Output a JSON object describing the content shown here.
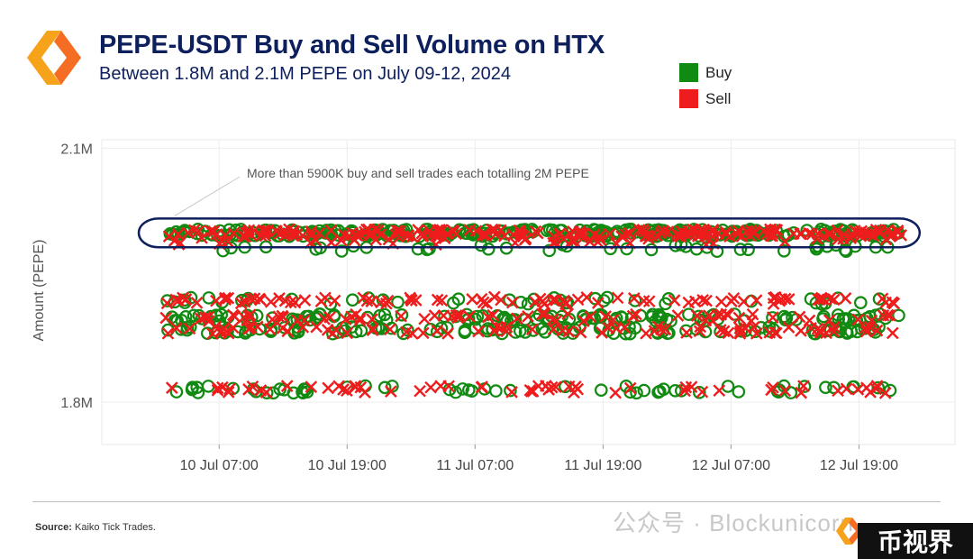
{
  "header": {
    "title": "PEPE-USDT Buy and Sell Volume on HTX",
    "subtitle": "Between 1.8M and 2.1M PEPE on July 09-12, 2024"
  },
  "legend": {
    "buy_label": "Buy",
    "sell_label": "Sell"
  },
  "colors": {
    "buy": "#118a11",
    "sell": "#ee1c1c",
    "title": "#0d1f5c",
    "highlight": "#0d1f5c"
  },
  "chart_data": {
    "type": "scatter",
    "ylabel": "Amount (PEPE)",
    "xlabel": "",
    "x_range": [
      "2024-07-09T20:00",
      "2024-07-13T04:00"
    ],
    "y_range": [
      1750000,
      2110000
    ],
    "y_ticks": [
      {
        "value": 1800000,
        "label": "1.8M"
      },
      {
        "value": 2100000,
        "label": "2.1M"
      }
    ],
    "x_ticks": [
      {
        "value": "2024-07-10T07:00",
        "label": "10 Jul 07:00"
      },
      {
        "value": "2024-07-10T19:00",
        "label": "10 Jul 19:00"
      },
      {
        "value": "2024-07-11T07:00",
        "label": "11 Jul 07:00"
      },
      {
        "value": "2024-07-11T19:00",
        "label": "11 Jul 19:00"
      },
      {
        "value": "2024-07-12T07:00",
        "label": "12 Jul 07:00"
      },
      {
        "value": "2024-07-12T19:00",
        "label": "12 Jul 19:00"
      }
    ],
    "time_span": [
      "2024-07-10T02:00",
      "2024-07-12T23:00"
    ],
    "grid": true,
    "legend_position": "top-right",
    "series": [
      {
        "name": "Buy",
        "marker": "circle",
        "bands": [
          {
            "y": 2000000,
            "count": 300
          },
          {
            "y": 1982000,
            "count": 40
          },
          {
            "y": 1920000,
            "count": 40
          },
          {
            "y": 1900000,
            "count": 120
          },
          {
            "y": 1885000,
            "count": 110
          },
          {
            "y": 1815000,
            "count": 60
          }
        ]
      },
      {
        "name": "Sell",
        "marker": "x",
        "bands": [
          {
            "y": 2000000,
            "count": 200
          },
          {
            "y": 1990000,
            "count": 40
          },
          {
            "y": 1920000,
            "count": 90
          },
          {
            "y": 1900000,
            "count": 70
          },
          {
            "y": 1885000,
            "count": 80
          },
          {
            "y": 1815000,
            "count": 60
          }
        ]
      }
    ],
    "annotation": {
      "text": "More than 5900K buy and sell trades each totalling 2M PEPE",
      "y_range": [
        1983000,
        2017000
      ]
    }
  },
  "footer": {
    "source_label": "Source:",
    "source_text": "Kaiko Tick Trades.",
    "watermark": "公众号 · Blockunicorn",
    "badge": "币视界"
  }
}
